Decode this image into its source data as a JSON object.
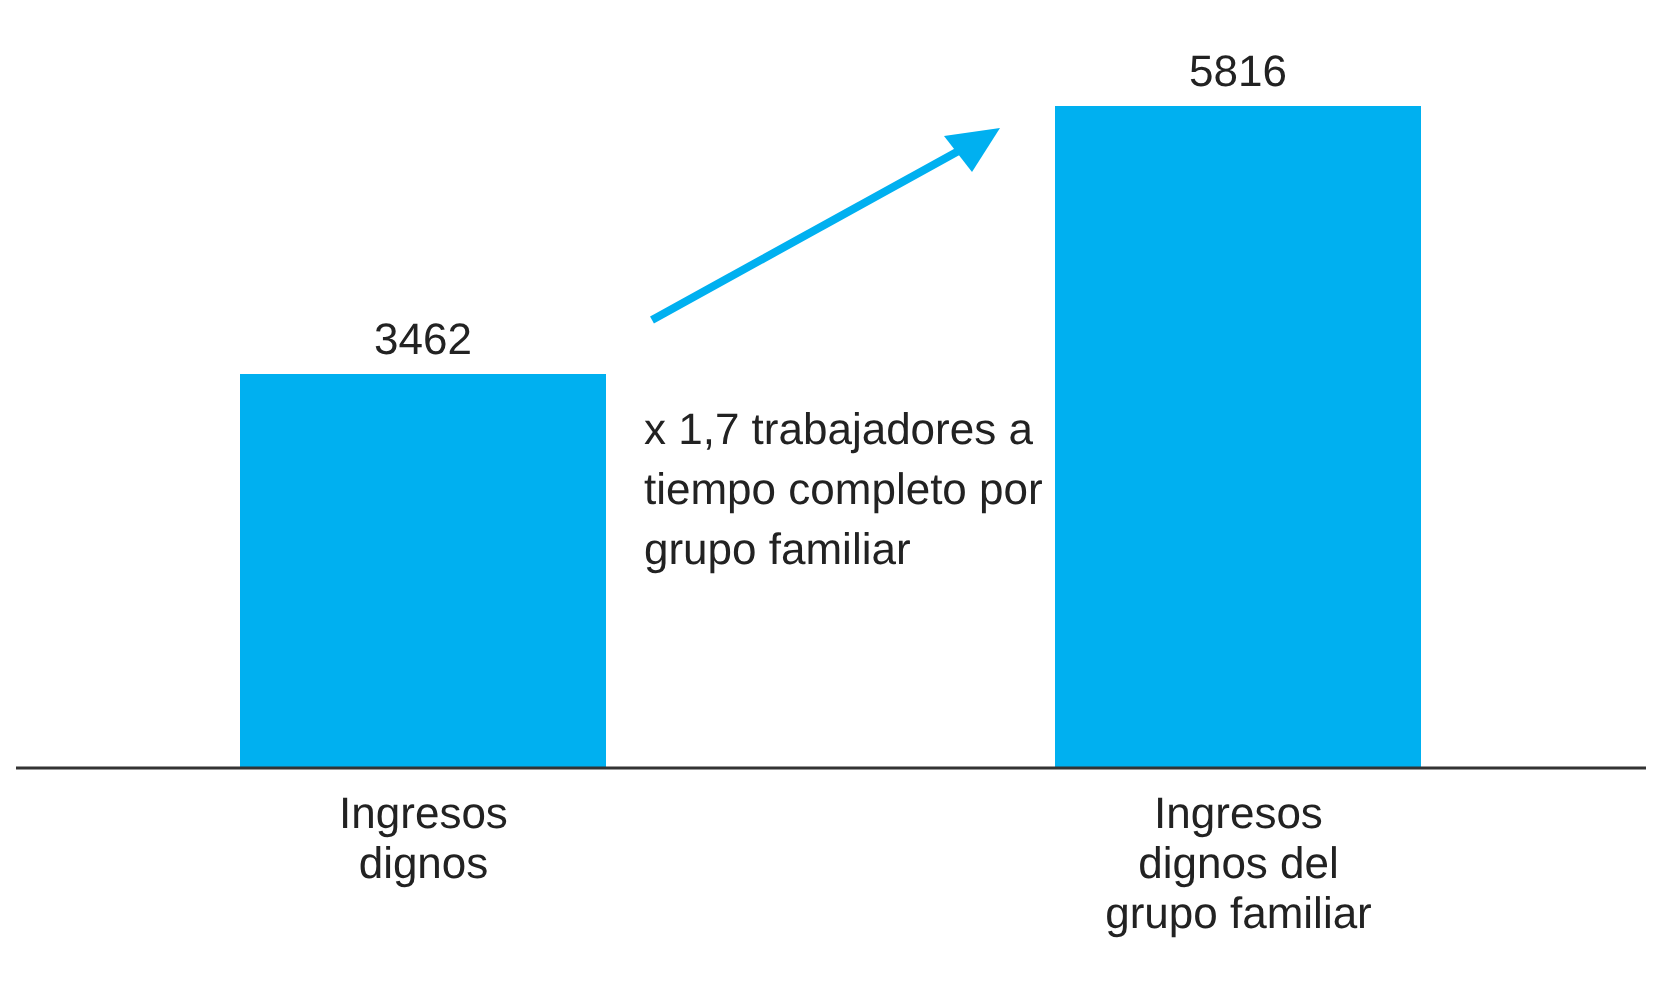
{
  "chart_data": {
    "type": "bar",
    "categories": [
      "Ingresos dignos",
      "Ingresos dignos del grupo familiar"
    ],
    "values": [
      3462,
      5816
    ],
    "color": "#00b0f0",
    "data_labels": true,
    "tick_labels": "x",
    "annotations": [
      "x 1,7 trabajadores a tiempo completo por grupo familiar"
    ]
  }
}
